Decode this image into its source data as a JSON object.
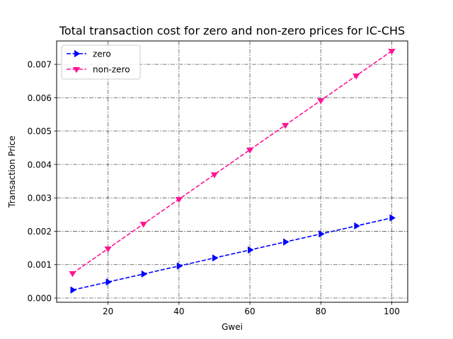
{
  "chart_data": {
    "type": "line",
    "title": "Total transaction cost for zero and non-zero prices for IC-CHS",
    "xlabel": "Gwei",
    "ylabel": "Transaction Price",
    "x": [
      10,
      20,
      30,
      40,
      50,
      60,
      70,
      80,
      90,
      100
    ],
    "xlim": [
      5.5,
      104.5
    ],
    "ylim": [
      -0.000127,
      0.0077
    ],
    "xticks": [
      20,
      40,
      60,
      80,
      100
    ],
    "xtick_labels": [
      "20",
      "40",
      "60",
      "80",
      "100"
    ],
    "yticks": [
      0,
      0.001,
      0.002,
      0.003,
      0.004,
      0.005,
      0.006,
      0.007
    ],
    "ytick_labels": [
      "0.000",
      "0.001",
      "0.002",
      "0.003",
      "0.004",
      "0.005",
      "0.006",
      "0.007"
    ],
    "grid": true,
    "legend_position": "top-left",
    "series": [
      {
        "name": "zero",
        "color": "#0000ff",
        "marker": "triangle-right",
        "linestyle": "dashed",
        "values": [
          0.00024,
          0.00048,
          0.00072,
          0.00096,
          0.0012,
          0.00144,
          0.00168,
          0.00192,
          0.00216,
          0.0024
        ]
      },
      {
        "name": "non-zero",
        "color": "#ff1493",
        "marker": "triangle-down",
        "linestyle": "dashed",
        "values": [
          0.00074,
          0.00148,
          0.00222,
          0.00296,
          0.0037,
          0.00444,
          0.00518,
          0.00592,
          0.00666,
          0.0074
        ]
      }
    ]
  }
}
